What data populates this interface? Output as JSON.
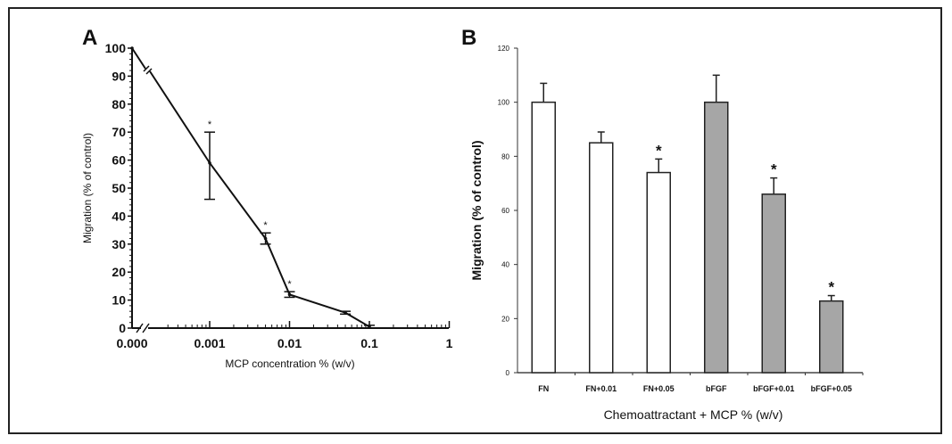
{
  "chart_data": [
    {
      "panel_label": "A",
      "type": "line",
      "xscale": "log (with axis break)",
      "xlabel": "MCP concentration % (w/v)",
      "ylabel": "Migration (% of control)",
      "xticks": [
        "0.000",
        "0.001",
        "0.01",
        "0.1",
        "1"
      ],
      "yticks": [
        0,
        10,
        20,
        30,
        40,
        50,
        60,
        70,
        80,
        90,
        100
      ],
      "ylim": [
        0,
        100
      ],
      "points": [
        {
          "x": 0,
          "y": 100,
          "err_low": 100,
          "err_high": 100,
          "sig": false
        },
        {
          "x": 0.001,
          "y": 59,
          "err_low": 46,
          "err_high": 70,
          "sig": true
        },
        {
          "x": 0.005,
          "y": 32,
          "err_low": 30,
          "err_high": 34,
          "sig": true
        },
        {
          "x": 0.01,
          "y": 12,
          "err_low": 11,
          "err_high": 13,
          "sig": true
        },
        {
          "x": 0.05,
          "y": 5.5,
          "err_low": 5,
          "err_high": 6,
          "sig": false
        },
        {
          "x": 0.1,
          "y": 0.5,
          "err_low": 0,
          "err_high": 1,
          "sig": false
        }
      ],
      "significance_marker": "*",
      "line_color": "#111111"
    },
    {
      "panel_label": "B",
      "type": "bar",
      "xlabel": "Chemoattractant + MCP % (w/v)",
      "ylabel": "Migration (% of control)",
      "ylim": [
        0,
        120
      ],
      "yticks": [
        0,
        20,
        40,
        60,
        80,
        100,
        120
      ],
      "categories": [
        "FN",
        "FN+0.01",
        "FN+0.05",
        "bFGF",
        "bFGF+0.01",
        "bFGF+0.05"
      ],
      "values": [
        100,
        85,
        74,
        100,
        66,
        26.5
      ],
      "errors": [
        7,
        4,
        5,
        10,
        6,
        2
      ],
      "significant": [
        false,
        false,
        true,
        false,
        true,
        true
      ],
      "fill_colors": [
        "#ffffff",
        "#ffffff",
        "#ffffff",
        "#a6a6a6",
        "#a6a6a6",
        "#a6a6a6"
      ],
      "significance_marker": "*"
    }
  ]
}
